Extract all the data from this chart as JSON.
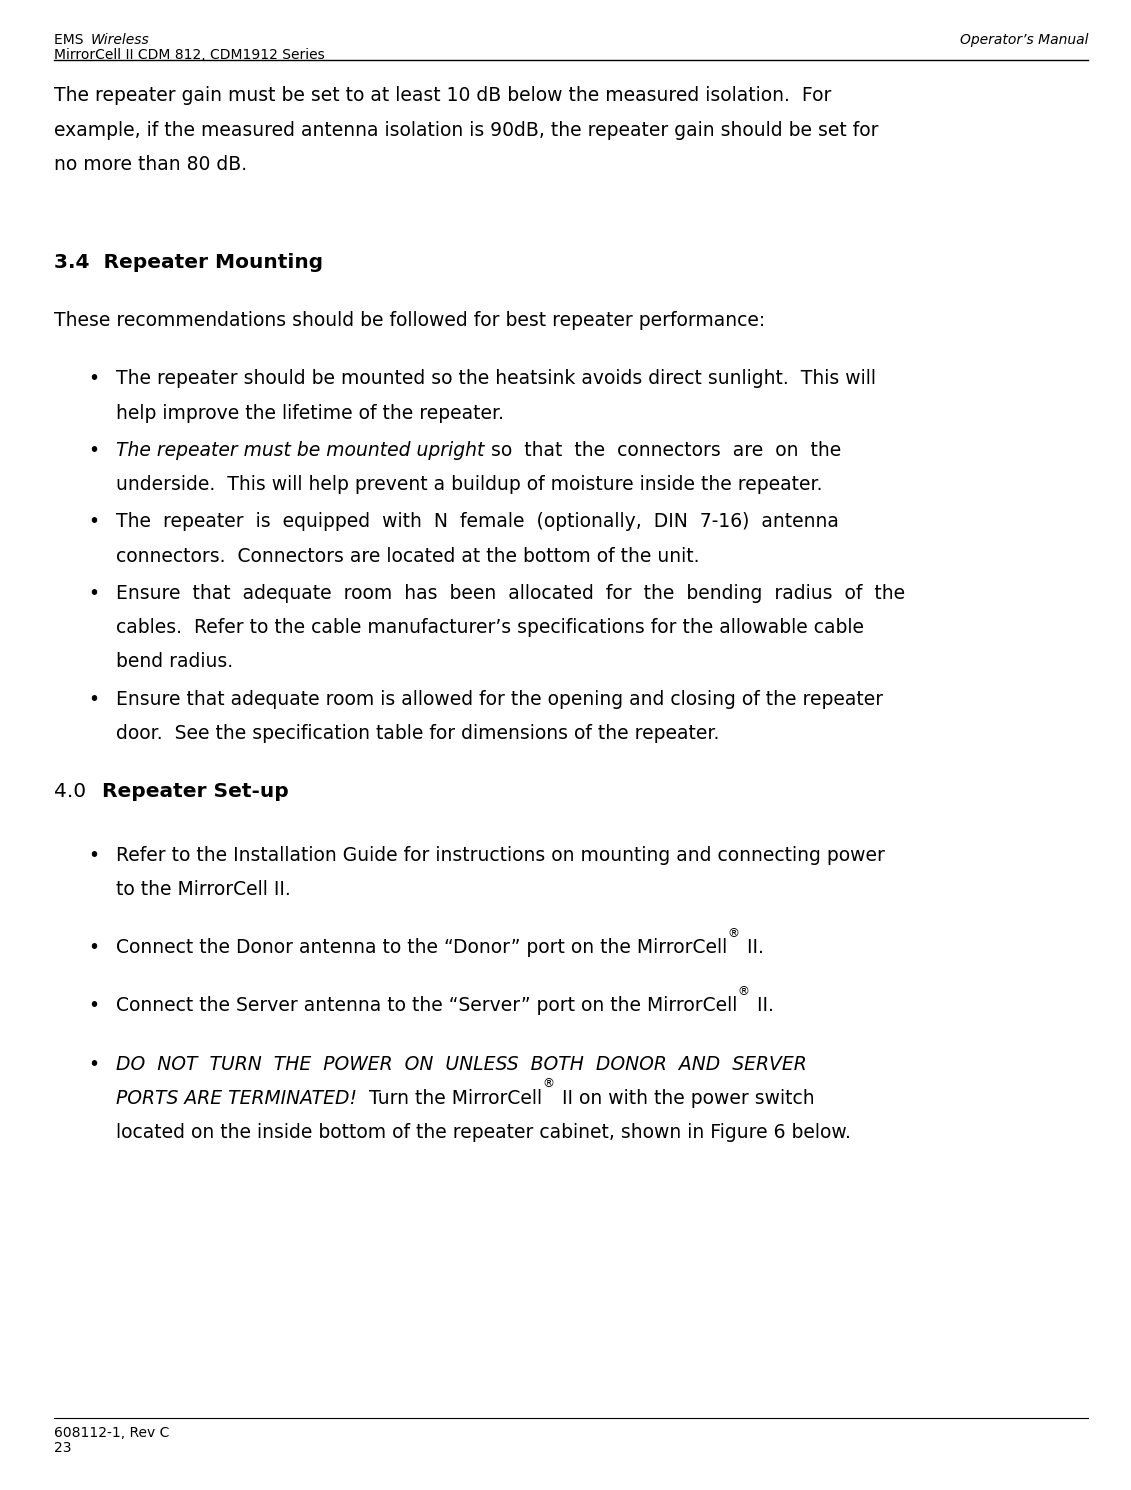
{
  "bg_color": "#ffffff",
  "header_ems": "EMS ",
  "header_wireless": "Wireless",
  "header_line2": "MirrorCell II CDM 812, CDM1912 Series",
  "header_right": "Operator’s Manual",
  "footer_line1": "608112-1, Rev C",
  "footer_line2": "23",
  "ml": 0.048,
  "mr": 0.962,
  "fs_header": 10.0,
  "fs_body": 13.5,
  "fs_section": 14.5,
  "lh": 0.0195,
  "bullet": "•"
}
